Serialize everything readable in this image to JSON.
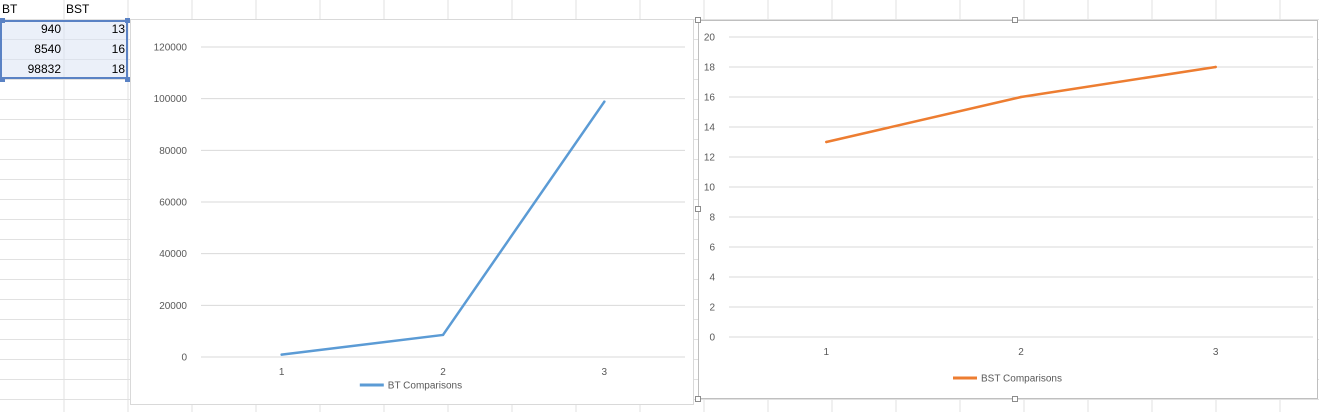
{
  "sheet": {
    "headers": [
      "BT",
      "BST"
    ],
    "rows": [
      [
        "940",
        "13"
      ],
      [
        "8540",
        "16"
      ],
      [
        "98832",
        "18"
      ]
    ]
  },
  "colors": {
    "bt_series": "#5b9bd5",
    "bst_series": "#ed7d31",
    "gridline": "#d9d9d9",
    "selection": "#5a82c4"
  },
  "chart_data": [
    {
      "type": "line",
      "title": "",
      "xlabel": "",
      "ylabel": "",
      "categories": [
        "1",
        "2",
        "3"
      ],
      "series": [
        {
          "name": "BT Comparisons",
          "values": [
            940,
            8540,
            98832
          ],
          "color": "#5b9bd5"
        }
      ],
      "ylim": [
        0,
        120000
      ],
      "yticks": [
        0,
        20000,
        40000,
        60000,
        80000,
        100000,
        120000
      ],
      "grid": true,
      "legend": "bottom"
    },
    {
      "type": "line",
      "title": "",
      "xlabel": "",
      "ylabel": "",
      "categories": [
        "1",
        "2",
        "3"
      ],
      "series": [
        {
          "name": "BST Comparisons",
          "values": [
            13,
            16,
            18
          ],
          "color": "#ed7d31"
        }
      ],
      "ylim": [
        0,
        20
      ],
      "yticks": [
        0,
        2,
        4,
        6,
        8,
        10,
        12,
        14,
        16,
        18,
        20
      ],
      "grid": true,
      "legend": "bottom"
    }
  ]
}
